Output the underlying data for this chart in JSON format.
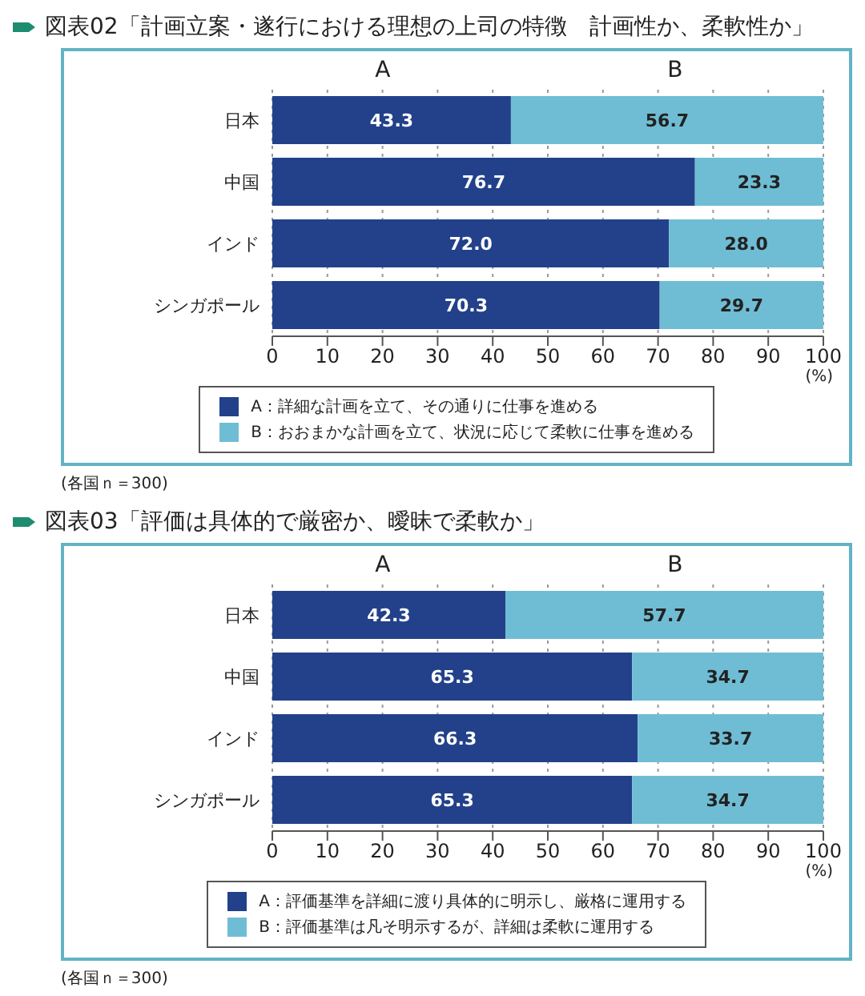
{
  "chart_data": [
    {
      "type": "bar",
      "orientation": "horizontal",
      "stacked": true,
      "title": "図表02「計画立案・遂行における理想の上司の特徴　計画性か、柔軟性か」",
      "xlabel": "(%)",
      "categories": [
        "日本",
        "中国",
        "インド",
        "シンガポール"
      ],
      "series": [
        {
          "name": "A：詳細な計画を立て、その通りに仕事を進める",
          "color": "#22418a",
          "values": [
            43.3,
            76.7,
            72.0,
            70.3
          ]
        },
        {
          "name": "B：おおまかな計画を立て、状況に応じて柔軟に仕事を進める",
          "color": "#6fbdd4",
          "values": [
            56.7,
            23.3,
            28.0,
            29.7
          ]
        }
      ],
      "value_labels": [
        [
          "43.3",
          "76.7",
          "72.0",
          "70.3"
        ],
        [
          "56.7",
          "23.3",
          "28.0",
          "29.7"
        ]
      ],
      "xlim": [
        0,
        100
      ],
      "xticks": [
        0,
        10,
        20,
        30,
        40,
        50,
        60,
        70,
        80,
        90,
        100
      ],
      "grid": "x",
      "legend": "bottom",
      "annotations": [
        "A",
        "B",
        "(各国ｎ＝300)"
      ]
    },
    {
      "type": "bar",
      "orientation": "horizontal",
      "stacked": true,
      "title": "図表03「評価は具体的で厳密か、曖昧で柔軟か」",
      "xlabel": "(%)",
      "categories": [
        "日本",
        "中国",
        "インド",
        "シンガポール"
      ],
      "series": [
        {
          "name": "A：評価基準を詳細に渡り具体的に明示し、厳格に運用する",
          "color": "#22418a",
          "values": [
            42.3,
            65.3,
            66.3,
            65.3
          ]
        },
        {
          "name": "B：評価基準は凡そ明示するが、詳細は柔軟に運用する",
          "color": "#6fbdd4",
          "values": [
            57.7,
            34.7,
            33.7,
            34.7
          ]
        }
      ],
      "value_labels": [
        [
          "42.3",
          "65.3",
          "66.3",
          "65.3"
        ],
        [
          "57.7",
          "34.7",
          "33.7",
          "34.7"
        ]
      ],
      "xlim": [
        0,
        100
      ],
      "xticks": [
        0,
        10,
        20,
        30,
        40,
        50,
        60,
        70,
        80,
        90,
        100
      ],
      "grid": "x",
      "legend": "bottom",
      "annotations": [
        "A",
        "B",
        "(各国ｎ＝300)"
      ]
    }
  ]
}
